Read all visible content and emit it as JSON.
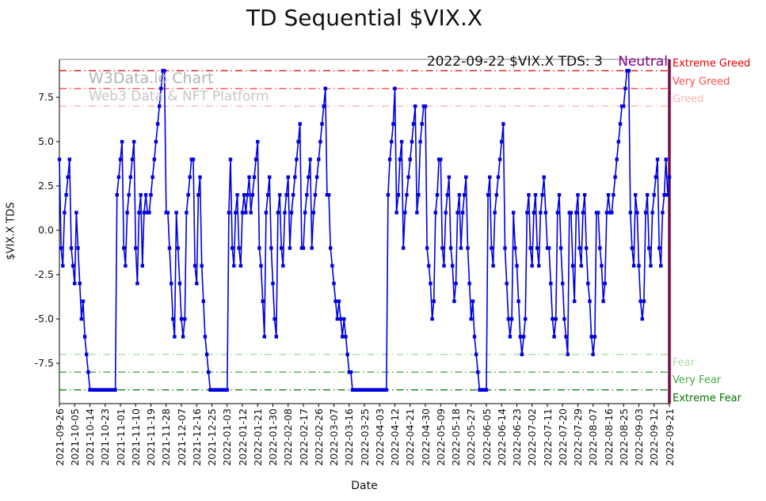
{
  "title": "TD Sequential $VIX.X",
  "watermark": {
    "line1": "W3Data.io Chart",
    "line2": "Web3 Data & NFT Platform"
  },
  "annotation": {
    "text": "2022-09-22 $VIX.X TDS: 3",
    "sentiment": "Neutral",
    "sentiment_color": "#800080"
  },
  "axes": {
    "ylabel": "$VIX.X TDS",
    "xlabel": "Date",
    "ytick_values": [
      -7.5,
      -5.0,
      -2.5,
      0.0,
      2.5,
      5.0,
      7.5
    ],
    "ytick_labels": [
      "-7.5",
      "-5.0",
      "-2.5",
      "0.0",
      "2.5",
      "5.0",
      "7.5"
    ],
    "ylim": [
      -9.75,
      9.65
    ]
  },
  "thresholds": [
    {
      "value": 9,
      "label": "Extreme Greed",
      "color": "#e60000"
    },
    {
      "value": 8,
      "label": "Very Greed",
      "color": "#ff4d4d"
    },
    {
      "value": 7,
      "label": "Greed",
      "color": "#ffb3b3"
    },
    {
      "value": -7,
      "label": "Fear",
      "color": "#aadcaa"
    },
    {
      "value": -8,
      "label": "Very Fear",
      "color": "#44a844"
    },
    {
      "value": -9,
      "label": "Extreme Fear",
      "color": "#007500"
    }
  ],
  "chart_data": {
    "type": "line",
    "series_name": "$VIX.X TDS",
    "line_color": "#0000dd",
    "marker": "square",
    "right_spine_color": "#7a0845",
    "tick_interval": 9,
    "x_tick_labels": [
      "2021-09-26",
      "2021-10-05",
      "2021-10-14",
      "2021-10-23",
      "2021-11-01",
      "2021-11-10",
      "2021-11-19",
      "2021-11-28",
      "2021-12-07",
      "2021-12-16",
      "2021-12-25",
      "2022-01-03",
      "2022-01-12",
      "2022-01-21",
      "2022-01-30",
      "2022-02-08",
      "2022-02-17",
      "2022-02-26",
      "2022-03-07",
      "2022-03-16",
      "2022-03-25",
      "2022-04-03",
      "2022-04-12",
      "2022-04-21",
      "2022-04-30",
      "2022-05-09",
      "2022-05-18",
      "2022-05-27",
      "2022-06-05",
      "2022-06-14",
      "2022-06-23",
      "2022-07-02",
      "2022-07-11",
      "2022-07-20",
      "2022-07-29",
      "2022-08-07",
      "2022-08-16",
      "2022-08-25",
      "2022-09-03",
      "2022-09-12",
      "2022-09-21"
    ],
    "values": [
      4,
      -1,
      -2,
      1,
      2,
      3,
      4,
      -1,
      -2,
      -3,
      1,
      -1,
      -3,
      -5,
      -4,
      -6,
      -7,
      -8,
      -9,
      -9,
      -9,
      -9,
      -9,
      -9,
      -9,
      -9,
      -9,
      -9,
      -9,
      -9,
      -9,
      -9,
      -9,
      -9,
      2,
      3,
      4,
      5,
      -1,
      -2,
      1,
      2,
      3,
      4,
      5,
      -1,
      -3,
      1,
      2,
      -2,
      1,
      2,
      1,
      1,
      2,
      3,
      4,
      5,
      6,
      7,
      8,
      9,
      9,
      1,
      1,
      -1,
      -3,
      -5,
      -6,
      1,
      -1,
      -3,
      -5,
      -6,
      -5,
      1,
      2,
      3,
      4,
      4,
      -2,
      -3,
      2,
      3,
      -2,
      -4,
      -6,
      -7,
      -8,
      -9,
      -9,
      -9,
      -9,
      -9,
      -9,
      -9,
      -9,
      -9,
      -9,
      -9,
      1,
      4,
      -1,
      -2,
      1,
      2,
      -1,
      -2,
      1,
      2,
      1,
      2,
      3,
      1,
      2,
      3,
      4,
      5,
      -1,
      -2,
      -4,
      -6,
      1,
      2,
      3,
      -1,
      -3,
      -5,
      -6,
      1,
      2,
      -1,
      -2,
      1,
      2,
      3,
      -1,
      1,
      2,
      3,
      4,
      5,
      6,
      -1,
      -1,
      1,
      2,
      3,
      4,
      -1,
      1,
      2,
      3,
      4,
      5,
      6,
      7,
      8,
      2,
      2,
      -1,
      -2,
      -3,
      -4,
      -5,
      -4,
      -5,
      -6,
      -5,
      -6,
      -7,
      -8,
      -8,
      -9,
      -9,
      -9,
      -9,
      -9,
      -9,
      -9,
      -9,
      -9,
      -9,
      -9,
      -9,
      -9,
      -9,
      -9,
      -9,
      -9,
      -9,
      -9,
      -9,
      -9,
      2,
      4,
      5,
      6,
      8,
      1,
      2,
      4,
      5,
      -1,
      1,
      2,
      3,
      4,
      5,
      6,
      7,
      1,
      2,
      5,
      6,
      7,
      7,
      -1,
      -2,
      -3,
      -5,
      -4,
      1,
      2,
      4,
      4,
      -1,
      -2,
      1,
      2,
      3,
      -1,
      -2,
      -4,
      -3,
      1,
      2,
      -1,
      1,
      2,
      3,
      -1,
      -3,
      -5,
      -4,
      -6,
      -7,
      -8,
      -9,
      -9,
      -9,
      -9,
      -9,
      2,
      3,
      -1,
      -2,
      1,
      2,
      3,
      4,
      5,
      6,
      -1,
      -3,
      -5,
      -6,
      -5,
      1,
      -1,
      -2,
      -4,
      -6,
      -7,
      -6,
      -5,
      1,
      2,
      -1,
      -2,
      1,
      2,
      -1,
      -2,
      1,
      2,
      3,
      1,
      -1,
      -1,
      -3,
      -5,
      -6,
      -5,
      1,
      2,
      -1,
      -3,
      -5,
      -6,
      -7,
      1,
      1,
      -2,
      -4,
      1,
      2,
      -1,
      -2,
      1,
      2,
      -1,
      -3,
      -4,
      -6,
      -7,
      -6,
      1,
      1,
      -1,
      -2,
      -4,
      -3,
      1,
      2,
      1,
      1,
      2,
      3,
      4,
      5,
      6,
      7,
      7,
      8,
      9,
      9,
      1,
      -1,
      -2,
      2,
      1,
      -2,
      -4,
      -5,
      -4,
      1,
      2,
      -1,
      -2,
      1,
      2,
      3,
      4,
      -1,
      -2,
      1,
      2,
      4,
      2,
      3
    ]
  }
}
